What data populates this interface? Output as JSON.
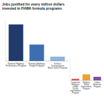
{
  "chart_data": [
    {
      "type": "bar",
      "title": "Jobs justified for every million dollars invested in FHWA formula programs",
      "categories": [
        "National Highway Performance Program",
        "National Highway Freight Program",
        "Surface Transportation Block Grant Program"
      ],
      "values": [
        100,
        45,
        12
      ],
      "colors": [
        "#1f3a6b",
        "#3c6fb0",
        "#8fb4de"
      ],
      "ylim": [
        0,
        110
      ],
      "tick_labels": "x",
      "grid": false
    },
    {
      "type": "bar",
      "categories": [
        "Congestion Mitigation and Air Quality Improvement Program",
        "Highway Safety Improvement Program",
        "Carbon Reduction Program"
      ],
      "values": [
        8,
        30,
        18
      ],
      "colors": [
        "#d9534f",
        "#f0a030",
        "#7b4fa0"
      ],
      "ylim": [
        0,
        110
      ],
      "tick_labels": "x",
      "grid": false
    }
  ]
}
